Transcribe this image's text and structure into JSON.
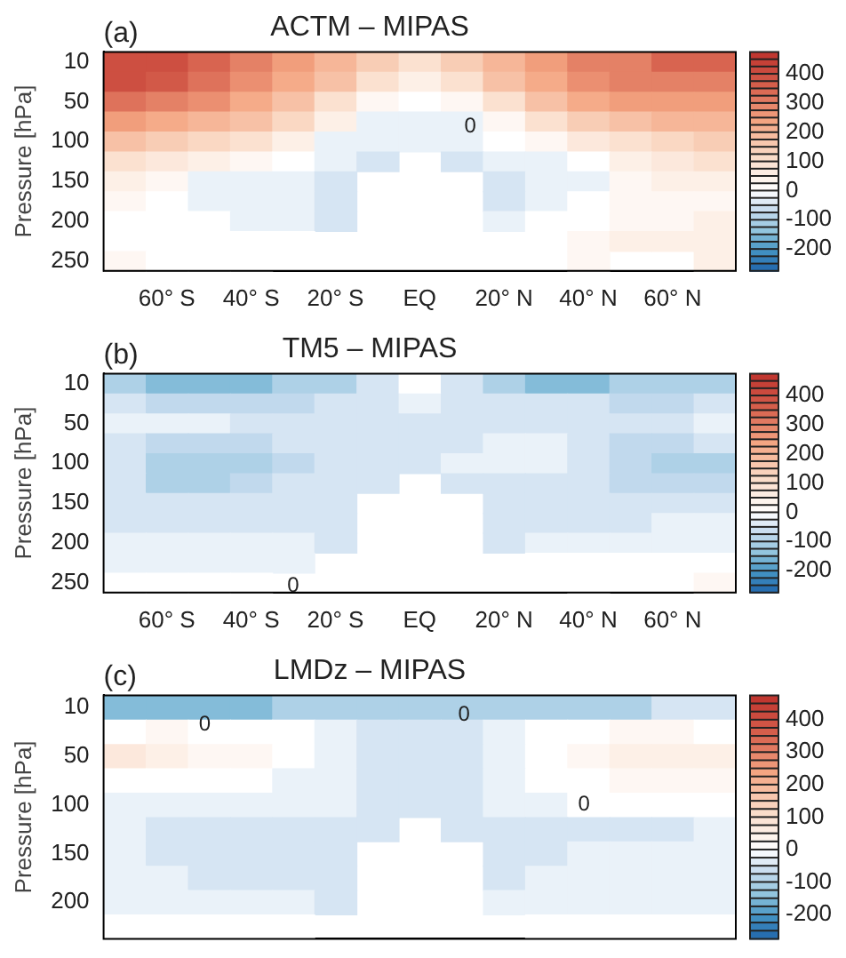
{
  "chart_data": [
    {
      "type": "heatmap",
      "title": "ACTM – MIPAS",
      "ylabel": "Pressure [hPa]",
      "annotations": [
        "(a)",
        "0"
      ],
      "categories": [
        null,
        "60° S",
        null,
        "40° S",
        null,
        "20° S",
        null,
        "EQ",
        null,
        "20° N",
        null,
        "40° N",
        null,
        "60° N",
        null
      ],
      "y_categories": [
        "10",
        null,
        "50",
        null,
        "100",
        null,
        "150",
        null,
        "200",
        null,
        "250"
      ],
      "cells": [
        [
          400,
          400,
          350,
          300,
          250,
          200,
          150,
          100,
          150,
          200,
          250,
          300,
          300,
          350,
          350
        ],
        [
          400,
          375,
          325,
          275,
          225,
          175,
          100,
          50,
          100,
          175,
          225,
          275,
          300,
          300,
          300
        ],
        [
          325,
          300,
          275,
          225,
          175,
          100,
          25,
          0,
          25,
          100,
          175,
          225,
          250,
          250,
          250
        ],
        [
          250,
          225,
          200,
          175,
          125,
          50,
          -25,
          -25,
          -25,
          25,
          100,
          150,
          175,
          200,
          200
        ],
        [
          175,
          150,
          125,
          100,
          50,
          -25,
          -25,
          -25,
          -25,
          0,
          25,
          75,
          100,
          125,
          150
        ],
        [
          100,
          75,
          50,
          25,
          0,
          -25,
          -50,
          null,
          -50,
          -25,
          -25,
          0,
          50,
          75,
          100
        ],
        [
          50,
          25,
          -25,
          -25,
          -25,
          -50,
          null,
          null,
          null,
          -50,
          -25,
          -25,
          25,
          50,
          50
        ],
        [
          25,
          0,
          -25,
          -25,
          -25,
          -50,
          null,
          null,
          null,
          -50,
          -25,
          0,
          25,
          25,
          25
        ],
        [
          0,
          0,
          0,
          -25,
          -25,
          -50,
          null,
          null,
          null,
          -25,
          0,
          0,
          25,
          25,
          50
        ],
        [
          0,
          0,
          0,
          0,
          0,
          null,
          null,
          null,
          null,
          null,
          0,
          25,
          50,
          50,
          50
        ],
        [
          25,
          0,
          0,
          0,
          null,
          null,
          null,
          null,
          null,
          null,
          null,
          25,
          null,
          null,
          50
        ]
      ],
      "clim": [
        -275,
        475
      ],
      "cticks": [
        400,
        300,
        200,
        100,
        0,
        -100,
        -200
      ]
    },
    {
      "type": "heatmap",
      "title": "TM5 – MIPAS",
      "ylabel": "Pressure [hPa]",
      "annotations": [
        "(b)",
        "0"
      ],
      "categories": [
        null,
        "60° S",
        null,
        "40° S",
        null,
        "20° S",
        null,
        "EQ",
        null,
        "20° N",
        null,
        "40° N",
        null,
        "60° N",
        null
      ],
      "y_categories": [
        "10",
        null,
        "50",
        null,
        "100",
        null,
        "150",
        null,
        "200",
        null,
        "250"
      ],
      "cells": [
        [
          -100,
          -150,
          -150,
          -150,
          -100,
          -100,
          -50,
          0,
          -50,
          -100,
          -150,
          -150,
          -100,
          -100,
          -100
        ],
        [
          -50,
          -75,
          -75,
          -75,
          -75,
          -50,
          -50,
          -25,
          -50,
          -50,
          -50,
          -50,
          -75,
          -75,
          -50
        ],
        [
          -25,
          -25,
          -25,
          -50,
          -50,
          -50,
          -50,
          -50,
          -50,
          -50,
          -50,
          -50,
          -50,
          -50,
          -25
        ],
        [
          -50,
          -75,
          -75,
          -75,
          -50,
          -50,
          -50,
          -50,
          -50,
          -25,
          -25,
          -50,
          -75,
          -75,
          -50
        ],
        [
          -50,
          -100,
          -100,
          -100,
          -75,
          -50,
          -50,
          -50,
          -25,
          -25,
          -25,
          -50,
          -75,
          -100,
          -100
        ],
        [
          -50,
          -100,
          -100,
          -75,
          -50,
          -50,
          -50,
          null,
          -50,
          -50,
          -50,
          -50,
          -75,
          -75,
          -75
        ],
        [
          -50,
          -50,
          -50,
          -50,
          -50,
          -50,
          null,
          null,
          null,
          -50,
          -50,
          -50,
          -50,
          -50,
          -50
        ],
        [
          -50,
          -50,
          -50,
          -50,
          -50,
          -50,
          null,
          null,
          null,
          -50,
          -50,
          -50,
          -50,
          -25,
          -25
        ],
        [
          -25,
          -25,
          -25,
          -25,
          -25,
          -50,
          null,
          null,
          null,
          -50,
          -25,
          -25,
          -25,
          -25,
          -25
        ],
        [
          -25,
          -25,
          -25,
          -25,
          -25,
          null,
          null,
          null,
          null,
          null,
          0,
          0,
          0,
          0,
          0
        ],
        [
          0,
          0,
          0,
          0,
          null,
          null,
          null,
          null,
          null,
          null,
          null,
          0,
          null,
          null,
          25
        ]
      ],
      "clim": [
        -275,
        475
      ],
      "cticks": [
        400,
        300,
        200,
        100,
        0,
        -100,
        -200
      ]
    },
    {
      "type": "heatmap",
      "title": "LMDz – MIPAS",
      "ylabel": "Pressure [hPa]",
      "tick_labels": "y",
      "annotations": [
        "(c)",
        "0",
        "0",
        "0"
      ],
      "categories": [
        null,
        null,
        null,
        null,
        null,
        null,
        null,
        null,
        null,
        null,
        null,
        null,
        null,
        null,
        null
      ],
      "y_categories": [
        "10",
        null,
        "50",
        null,
        "100",
        null,
        "150",
        null,
        "200",
        null
      ],
      "cells": [
        [
          -150,
          -150,
          -150,
          -150,
          -100,
          -100,
          -100,
          -100,
          -100,
          -100,
          -100,
          -100,
          -100,
          -50,
          -50
        ],
        [
          0,
          25,
          0,
          0,
          0,
          -25,
          -50,
          -50,
          -50,
          -25,
          0,
          0,
          25,
          25,
          0
        ],
        [
          75,
          50,
          25,
          25,
          0,
          -25,
          -50,
          -50,
          -50,
          -25,
          0,
          25,
          50,
          50,
          50
        ],
        [
          0,
          0,
          0,
          0,
          -25,
          -25,
          -50,
          -50,
          -50,
          -25,
          0,
          0,
          25,
          25,
          25
        ],
        [
          -25,
          -25,
          -25,
          -25,
          -25,
          -25,
          -50,
          -50,
          -50,
          -25,
          -25,
          0,
          0,
          0,
          0
        ],
        [
          -25,
          -50,
          -50,
          -50,
          -50,
          -50,
          -50,
          null,
          -50,
          -50,
          -50,
          -50,
          -50,
          -50,
          -25
        ],
        [
          -25,
          -50,
          -50,
          -50,
          -50,
          -50,
          null,
          null,
          null,
          -50,
          -50,
          -25,
          -25,
          -25,
          -25
        ],
        [
          -25,
          -25,
          -50,
          -50,
          -50,
          -50,
          null,
          null,
          null,
          -50,
          -25,
          -25,
          -25,
          -25,
          -25
        ],
        [
          -25,
          -25,
          -25,
          -25,
          -25,
          -50,
          null,
          null,
          null,
          -25,
          -25,
          -25,
          -25,
          -25,
          -25
        ],
        [
          0,
          0,
          0,
          0,
          0,
          null,
          null,
          null,
          null,
          null,
          0,
          0,
          0,
          0,
          0
        ]
      ],
      "clim": [
        -275,
        475
      ],
      "cticks": [
        400,
        300,
        200,
        100,
        0,
        -100,
        -200
      ]
    }
  ]
}
